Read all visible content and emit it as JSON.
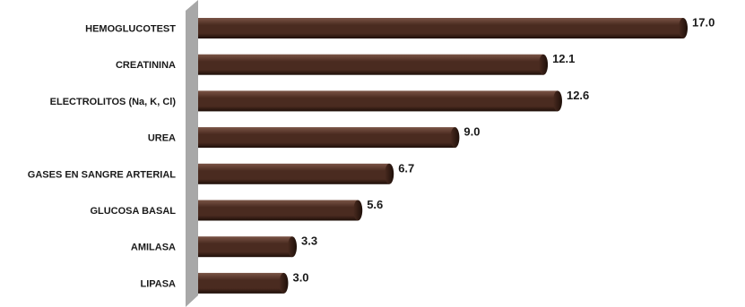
{
  "chart_data": {
    "type": "bar",
    "orientation": "horizontal",
    "categories": [
      "HEMOGLUCOTEST",
      "CREATININA",
      "ELECTROLITOS (Na, K, Cl)",
      "UREA",
      "GASES EN SANGRE ARTERIAL",
      "GLUCOSA BASAL",
      "AMILASA",
      "LIPASA"
    ],
    "values": [
      17.0,
      12.1,
      12.6,
      9.0,
      6.7,
      5.6,
      3.3,
      3.0
    ],
    "value_labels": [
      "17.0",
      "12.1",
      "12.6",
      "9.0",
      "6.7",
      "5.6",
      "3.3",
      "3.0"
    ],
    "title": "",
    "xlabel": "",
    "ylabel": "",
    "xlim": [
      0,
      17.0
    ],
    "grid": false,
    "legend": "none",
    "bar_color": "#4a2b20",
    "bar_highlight": "#7a5446",
    "bar_shadow": "#1e0f09",
    "wall_color": "#a8a8a8"
  }
}
